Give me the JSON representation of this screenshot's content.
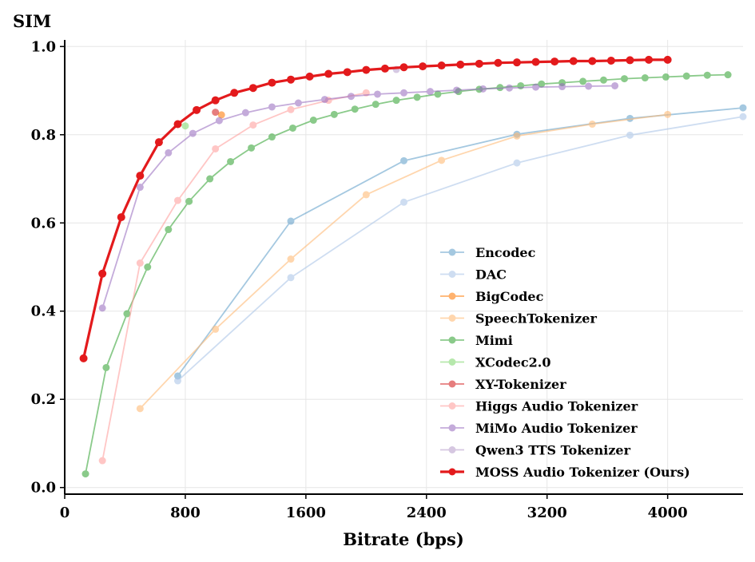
{
  "chart_data": {
    "type": "line",
    "xlabel": "Bitrate (bps)",
    "ylabel": "SIM",
    "xlim": [
      0,
      4500
    ],
    "ylim": [
      -0.015,
      1.015
    ],
    "xticks": [
      0,
      800,
      1600,
      2400,
      3200,
      4000
    ],
    "xtick_labels": [
      "0",
      "800",
      "1600",
      "2400",
      "3200",
      "4000"
    ],
    "yticks": [
      0.0,
      0.2,
      0.4,
      0.6,
      0.8,
      1.0
    ],
    "ytick_labels": [
      "0.0",
      "0.2",
      "0.4",
      "0.6",
      "0.8",
      "1.0"
    ],
    "grid": true,
    "legend_position": "lower-right",
    "series": [
      {
        "name": "Encodec",
        "color": "#1f77b4",
        "opacity": 0.4,
        "bold": false,
        "x": [
          750,
          1500,
          2250,
          3000,
          3750,
          4500
        ],
        "y": [
          0.253,
          0.604,
          0.741,
          0.801,
          0.837,
          0.861
        ]
      },
      {
        "name": "DAC",
        "color": "#aec7e8",
        "opacity": 0.6,
        "bold": false,
        "x": [
          750,
          1500,
          2250,
          3000,
          3750,
          4500
        ],
        "y": [
          0.242,
          0.476,
          0.647,
          0.736,
          0.799,
          0.841
        ]
      },
      {
        "name": "BigCodec",
        "color": "#ff7f0e",
        "opacity": 0.6,
        "bold": false,
        "x": [
          1040
        ],
        "y": [
          0.845
        ]
      },
      {
        "name": "SpeechTokenizer",
        "color": "#ffbb78",
        "opacity": 0.6,
        "bold": false,
        "x": [
          500,
          1000,
          1500,
          2000,
          2500,
          3000,
          3500,
          4000
        ],
        "y": [
          0.179,
          0.359,
          0.518,
          0.664,
          0.742,
          0.797,
          0.824,
          0.846
        ]
      },
      {
        "name": "Mimi",
        "color": "#2ca02c",
        "opacity": 0.55,
        "bold": false,
        "x": [
          138,
          275,
          413,
          550,
          688,
          825,
          963,
          1100,
          1238,
          1375,
          1513,
          1650,
          1788,
          1925,
          2063,
          2200,
          2338,
          2475,
          2613,
          2750,
          2888,
          3025,
          3163,
          3300,
          3438,
          3575,
          3713,
          3850,
          3988,
          4125,
          4263,
          4400
        ],
        "y": [
          0.031,
          0.272,
          0.394,
          0.5,
          0.585,
          0.649,
          0.7,
          0.739,
          0.77,
          0.795,
          0.815,
          0.833,
          0.846,
          0.858,
          0.869,
          0.878,
          0.885,
          0.892,
          0.898,
          0.903,
          0.907,
          0.911,
          0.915,
          0.918,
          0.921,
          0.924,
          0.927,
          0.929,
          0.931,
          0.933,
          0.935,
          0.936
        ]
      },
      {
        "name": "XCodec2.0",
        "color": "#98df8a",
        "opacity": 0.7,
        "bold": false,
        "x": [
          800
        ],
        "y": [
          0.82
        ]
      },
      {
        "name": "XY-Tokenizer",
        "color": "#d62728",
        "opacity": 0.6,
        "bold": false,
        "x": [
          1000
        ],
        "y": [
          0.851
        ]
      },
      {
        "name": "Higgs Audio Tokenizer",
        "color": "#ff9896",
        "opacity": 0.55,
        "bold": false,
        "x": [
          250,
          500,
          750,
          1000,
          1250,
          1500,
          1750,
          2000
        ],
        "y": [
          0.061,
          0.509,
          0.651,
          0.768,
          0.822,
          0.857,
          0.878,
          0.895
        ]
      },
      {
        "name": "MiMo Audio Tokenizer",
        "color": "#9467bd",
        "opacity": 0.55,
        "bold": false,
        "x": [
          250,
          500,
          688,
          850,
          1025,
          1200,
          1375,
          1550,
          1725,
          1900,
          2075,
          2250,
          2425,
          2600,
          2775,
          2950,
          3125,
          3300,
          3475,
          3650
        ],
        "y": [
          0.407,
          0.681,
          0.759,
          0.803,
          0.832,
          0.85,
          0.863,
          0.872,
          0.88,
          0.887,
          0.892,
          0.895,
          0.898,
          0.901,
          0.904,
          0.906,
          0.908,
          0.909,
          0.91,
          0.911
        ]
      },
      {
        "name": "Qwen3 TTS Tokenizer",
        "color": "#c5b0d5",
        "opacity": 0.7,
        "bold": false,
        "x": [
          2200
        ],
        "y": [
          0.948
        ]
      },
      {
        "name": "MOSS Audio Tokenizer (Ours)",
        "color": "#e31a1c",
        "opacity": 1.0,
        "bold": true,
        "x": [
          125,
          250,
          375,
          500,
          625,
          750,
          875,
          1000,
          1125,
          1250,
          1375,
          1500,
          1625,
          1750,
          1875,
          2000,
          2125,
          2250,
          2375,
          2500,
          2625,
          2750,
          2875,
          3000,
          3125,
          3250,
          3375,
          3500,
          3625,
          3750,
          3875,
          4000
        ],
        "y": [
          0.293,
          0.485,
          0.613,
          0.707,
          0.783,
          0.824,
          0.856,
          0.878,
          0.895,
          0.906,
          0.918,
          0.925,
          0.932,
          0.938,
          0.942,
          0.947,
          0.95,
          0.953,
          0.955,
          0.957,
          0.959,
          0.961,
          0.963,
          0.964,
          0.965,
          0.966,
          0.967,
          0.967,
          0.968,
          0.969,
          0.97,
          0.97
        ]
      }
    ]
  }
}
